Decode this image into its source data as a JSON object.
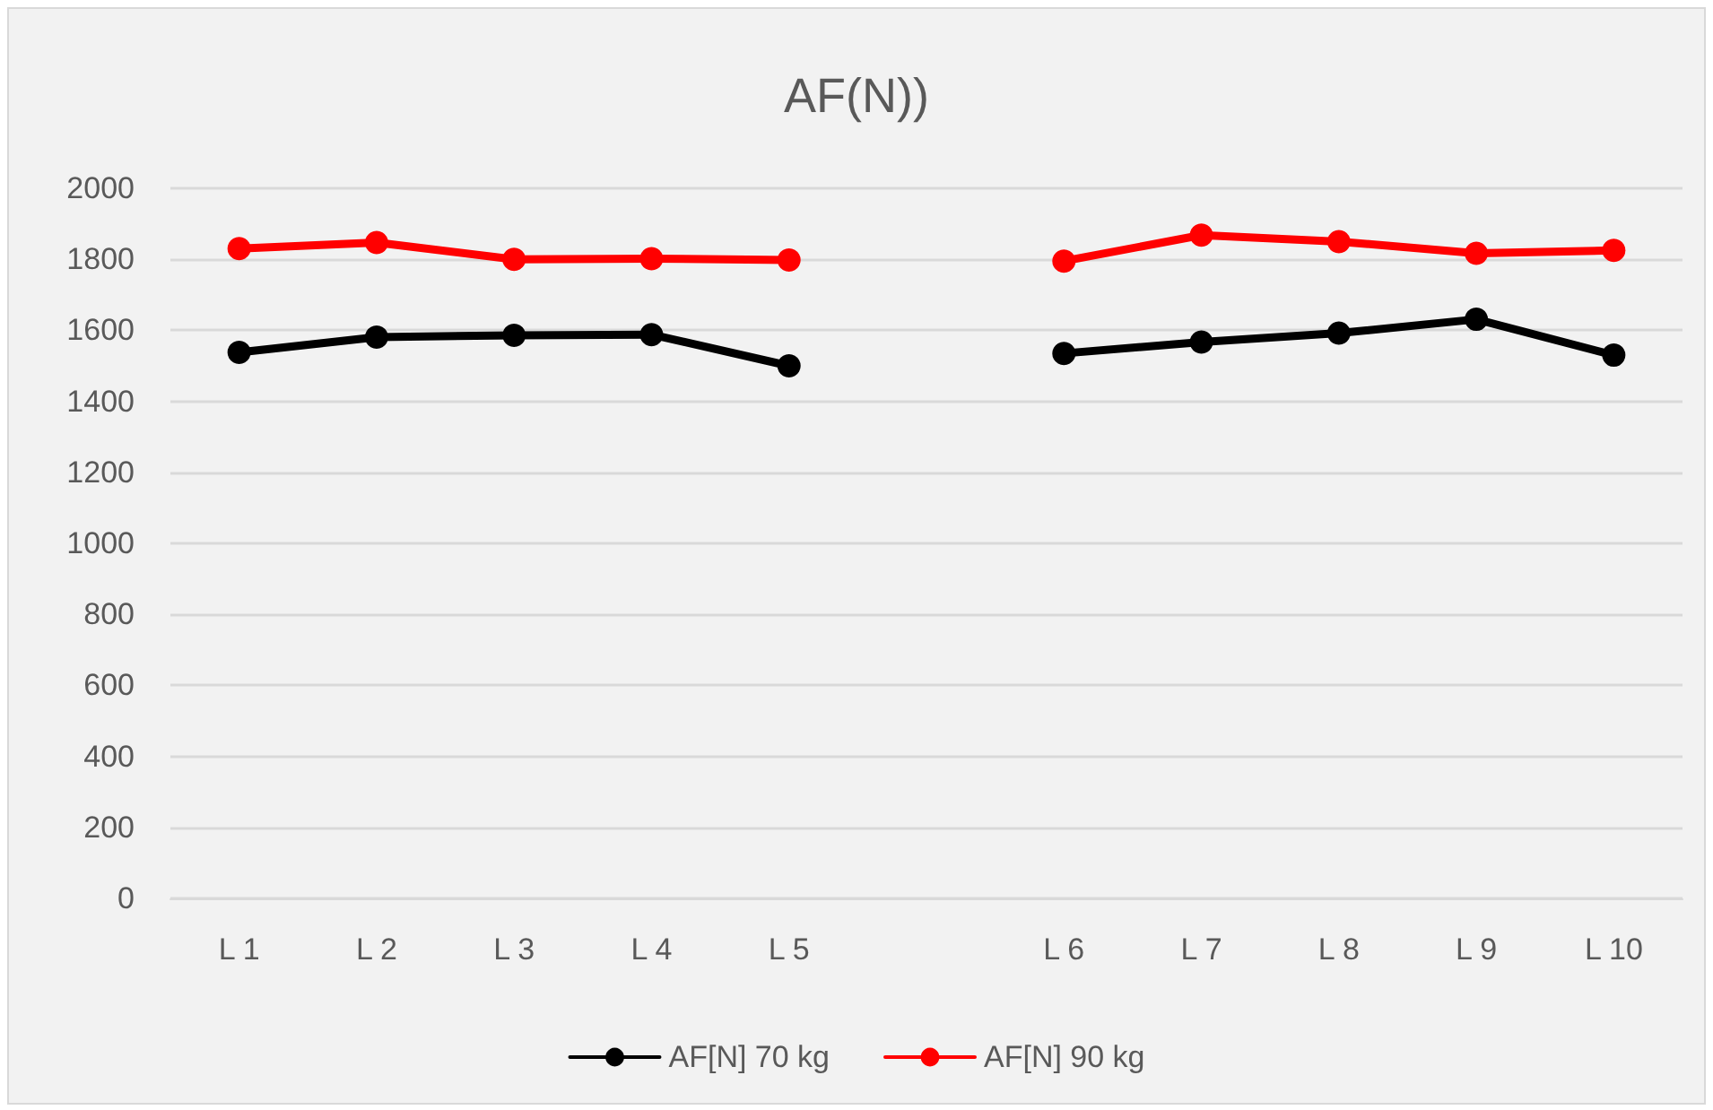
{
  "chart_data": {
    "type": "line",
    "title": "AF(N))",
    "categories": [
      "L 1",
      "L 2",
      "L 3",
      "L 4",
      "L 5",
      null,
      "L 6",
      "L 7",
      "L 8",
      "L 9",
      "L 10"
    ],
    "series": [
      {
        "name": "AF[N] 70 kg",
        "color": "#000000",
        "values": [
          1538,
          1581,
          1586,
          1588,
          1500,
          null,
          1535,
          1567,
          1592,
          1631,
          1530
        ]
      },
      {
        "name": "AF[N] 90 kg",
        "color": "#ff0000",
        "values": [
          1830,
          1847,
          1800,
          1802,
          1798,
          null,
          1795,
          1868,
          1850,
          1817,
          1825
        ]
      }
    ],
    "ylim": [
      0,
      2000
    ],
    "yticks": [
      0,
      200,
      400,
      600,
      800,
      1000,
      1200,
      1400,
      1600,
      1800,
      2000
    ],
    "grid": "y",
    "legend": "bottom",
    "marker": "circle",
    "line_style": "solid"
  }
}
